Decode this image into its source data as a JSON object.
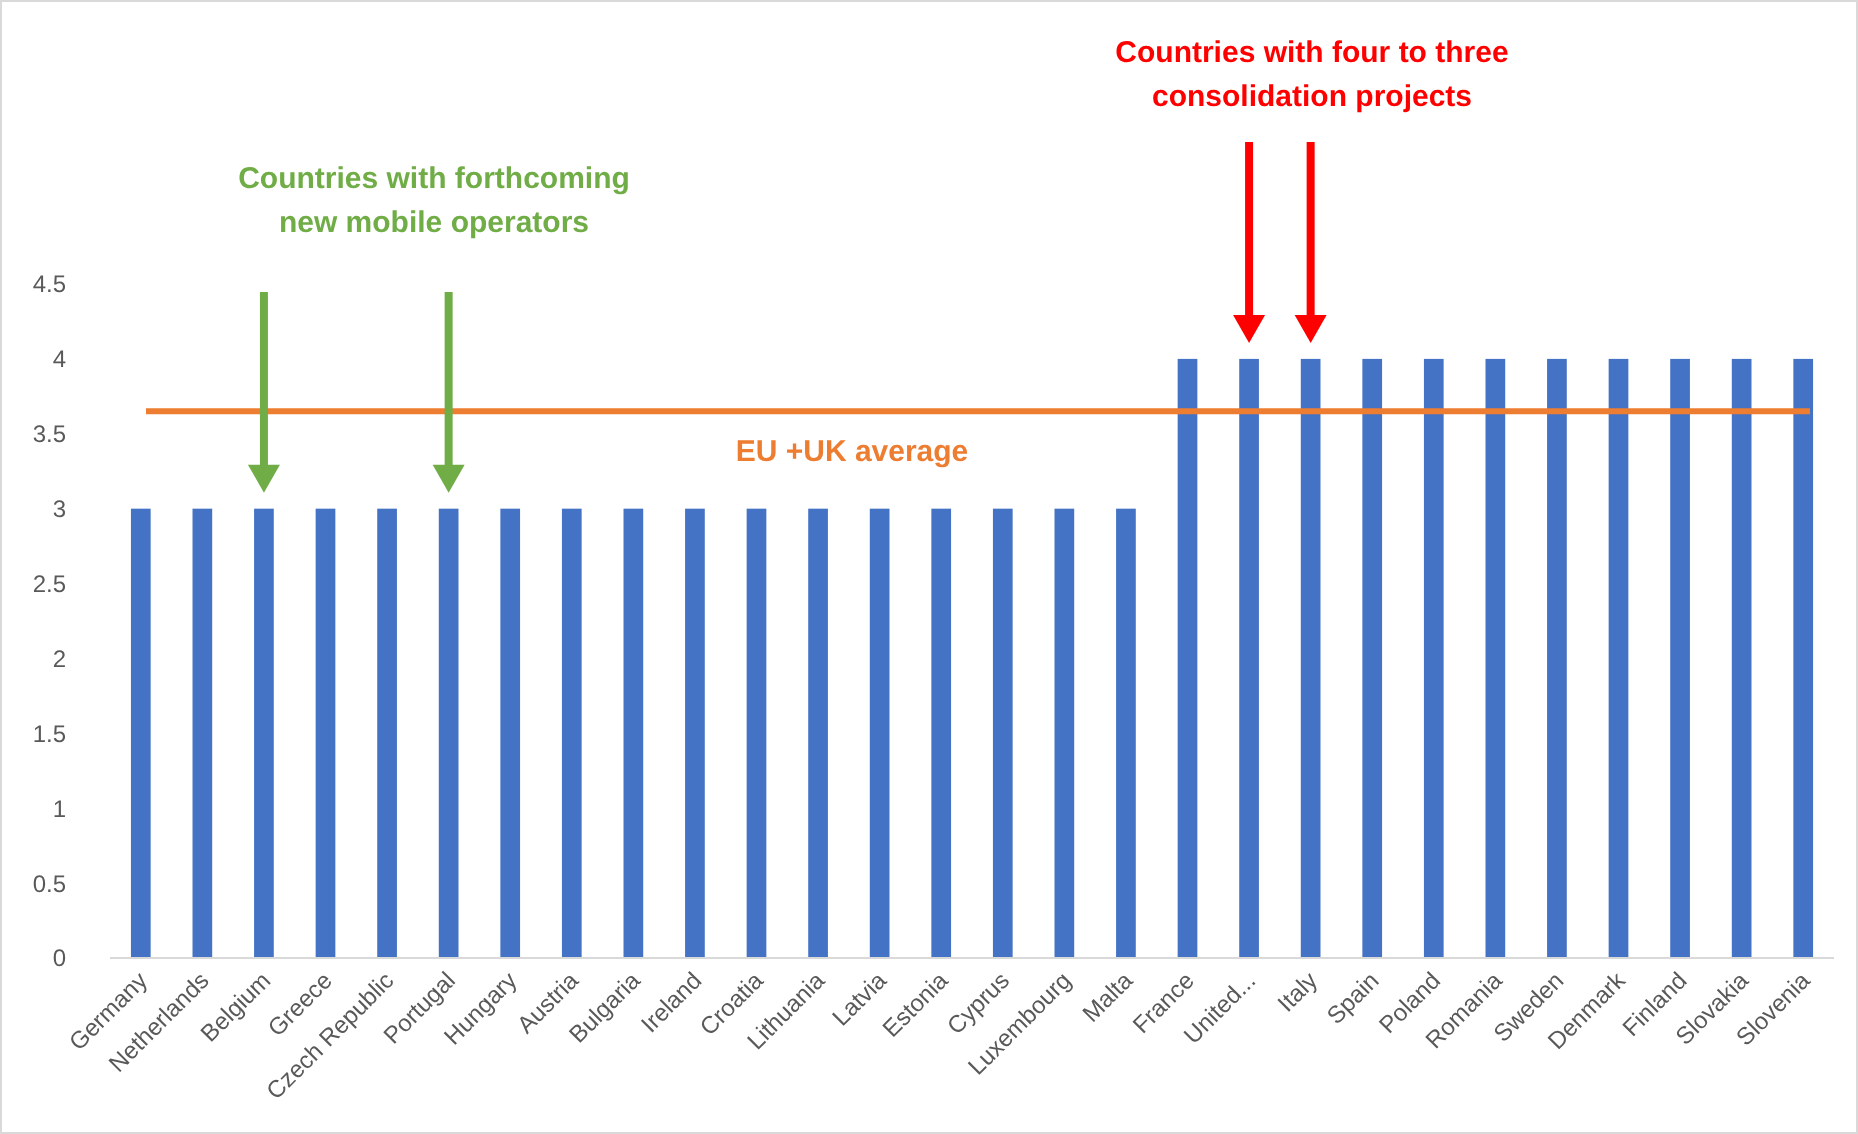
{
  "chart_data": {
    "type": "bar",
    "categories": [
      "Germany",
      "Netherlands",
      "Belgium",
      "Greece",
      "Czech Republic",
      "Portugal",
      "Hungary",
      "Austria",
      "Bulgaria",
      "Ireland",
      "Croatia",
      "Lithuania",
      "Latvia",
      "Estonia",
      "Cyprus",
      "Luxembourg",
      "Malta",
      "France",
      "United...",
      "Italy",
      "Spain",
      "Poland",
      "Romania",
      "Sweden",
      "Denmark",
      "Finland",
      "Slovakia",
      "Slovenia"
    ],
    "values": [
      3,
      3,
      3,
      3,
      3,
      3,
      3,
      3,
      3,
      3,
      3,
      3,
      3,
      3,
      3,
      3,
      3,
      4,
      4,
      4,
      4,
      4,
      4,
      4,
      4,
      4,
      4,
      4
    ],
    "color": "#4472c4",
    "ylim": [
      0,
      4.5
    ],
    "yticks": [
      0,
      0.5,
      1,
      1.5,
      2,
      2.5,
      3,
      3.5,
      4,
      4.5
    ],
    "grid": false,
    "ref_lines": [
      {
        "axis": "y",
        "value": 3.65,
        "label": "EU +UK average",
        "color": "#ed7d31"
      }
    ],
    "annotations": [
      "Countries with forthcoming new mobile operators",
      "Countries with four to three consolidation projects"
    ]
  }
}
